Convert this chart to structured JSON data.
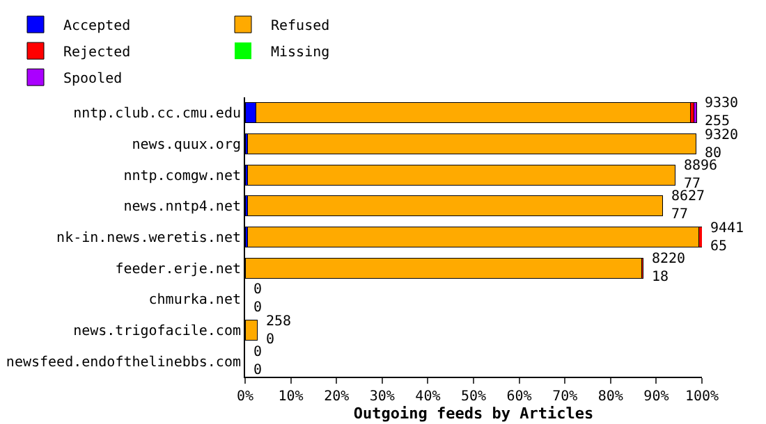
{
  "chart_data": {
    "type": "bar",
    "orientation": "horizontal",
    "stacked": true,
    "xlabel": "Outgoing feeds by Articles",
    "categories": [
      "nntp.club.cc.cmu.edu",
      "news.quux.org",
      "nntp.comgw.net",
      "news.nntp4.net",
      "nk-in.news.weretis.net",
      "feeder.erje.net",
      "chmurka.net",
      "news.trigofacile.com",
      "newsfeed.endofthelinebbs.com"
    ],
    "series": [
      {
        "name": "Accepted",
        "color": "#0000ff",
        "values": [
          2.3,
          0.5,
          0.5,
          0.5,
          0.5,
          0,
          0,
          0,
          0
        ]
      },
      {
        "name": "Refused",
        "color": "#ffaa00",
        "values": [
          95.2,
          98.2,
          93.7,
          90.9,
          98.8,
          86.8,
          0,
          2.7,
          0
        ]
      },
      {
        "name": "Rejected",
        "color": "#ff0000",
        "values": [
          0.8,
          0,
          0,
          0,
          0.7,
          0.3,
          0,
          0,
          0
        ]
      },
      {
        "name": "Missing",
        "color": "#00ff00",
        "values": [
          0,
          0,
          0,
          0,
          0,
          0,
          0,
          0,
          0
        ]
      },
      {
        "name": "Spooled",
        "color": "#aa00ff",
        "values": [
          0.5,
          0,
          0,
          0,
          0,
          0,
          0,
          0,
          0
        ]
      }
    ],
    "value_labels": [
      "9330\n255",
      "9320\n80",
      "8896\n77",
      "8627\n77",
      "9441\n65",
      "8220\n18",
      "0\n0",
      "258\n0",
      "0\n0"
    ],
    "xlim": [
      0,
      100
    ],
    "xticks": [
      {
        "value": 0,
        "label": "0%"
      },
      {
        "value": 10,
        "label": "10%"
      },
      {
        "value": 20,
        "label": "20%"
      },
      {
        "value": 30,
        "label": "30%"
      },
      {
        "value": 40,
        "label": "40%"
      },
      {
        "value": 50,
        "label": "50%"
      },
      {
        "value": 60,
        "label": "60%"
      },
      {
        "value": 70,
        "label": "70%"
      },
      {
        "value": 80,
        "label": "80%"
      },
      {
        "value": 90,
        "label": "90%"
      },
      {
        "value": 100,
        "label": "100%"
      }
    ],
    "legend": "top",
    "grid": false
  }
}
